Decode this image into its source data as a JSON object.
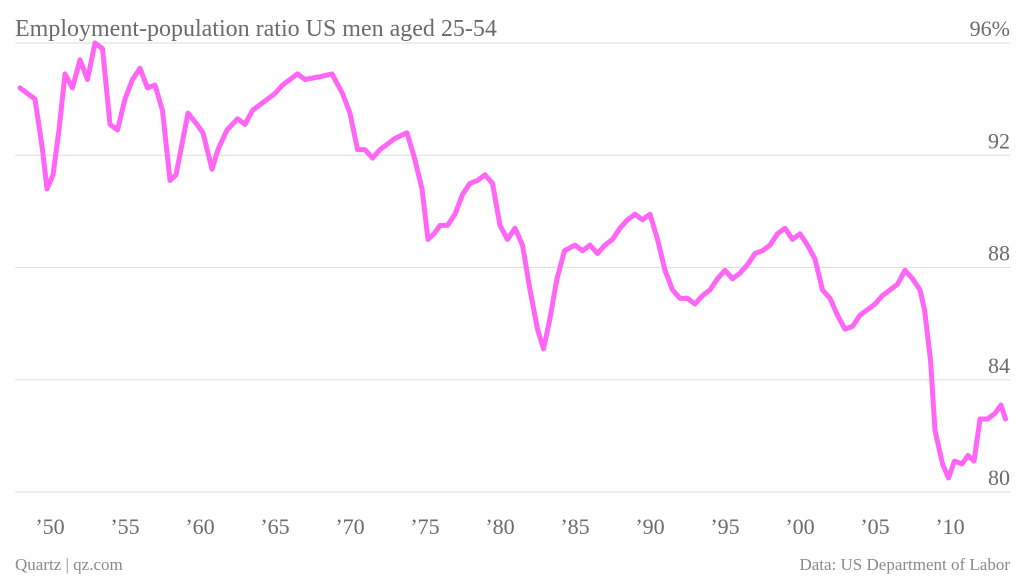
{
  "chart_data": {
    "type": "line",
    "title": "Employment-population ratio US men aged 25-54",
    "source": "Data: US Department of Labor",
    "credit": "Quartz | qz.com",
    "color": "#ff66f5",
    "grid": true,
    "xlim": [
      1947,
      2014
    ],
    "xticks": [
      {
        "value": 1950,
        "label": "’50"
      },
      {
        "value": 1955,
        "label": "’55"
      },
      {
        "value": 1960,
        "label": "’60"
      },
      {
        "value": 1965,
        "label": "’65"
      },
      {
        "value": 1970,
        "label": "’70"
      },
      {
        "value": 1975,
        "label": "’75"
      },
      {
        "value": 1980,
        "label": "’80"
      },
      {
        "value": 1985,
        "label": "’85"
      },
      {
        "value": 1990,
        "label": "’90"
      },
      {
        "value": 1995,
        "label": "’95"
      },
      {
        "value": 2000,
        "label": "’00"
      },
      {
        "value": 2005,
        "label": "’05"
      },
      {
        "value": 2010,
        "label": "’10"
      }
    ],
    "ylim": [
      80,
      96
    ],
    "yticks": [
      80,
      84,
      88,
      92,
      {
        "value": 96,
        "label": "96%"
      }
    ],
    "x": [
      1948.0,
      1948.5,
      1949.0,
      1949.5,
      1949.8,
      1950.2,
      1950.6,
      1951.0,
      1951.5,
      1952.0,
      1952.5,
      1953.0,
      1953.5,
      1954.0,
      1954.5,
      1955.0,
      1955.5,
      1956.0,
      1956.5,
      1957.0,
      1957.5,
      1958.0,
      1958.4,
      1958.8,
      1959.2,
      1959.8,
      1960.2,
      1960.8,
      1961.2,
      1961.8,
      1962.5,
      1963.0,
      1963.5,
      1964.0,
      1964.5,
      1965.0,
      1965.5,
      1966.0,
      1966.5,
      1967.0,
      1968.0,
      1968.8,
      1969.5,
      1970.0,
      1970.5,
      1971.0,
      1971.5,
      1972.0,
      1972.5,
      1973.0,
      1973.8,
      1974.3,
      1974.8,
      1975.2,
      1975.6,
      1976.0,
      1976.5,
      1977.0,
      1977.5,
      1978.0,
      1978.5,
      1979.0,
      1979.5,
      1980.0,
      1980.5,
      1981.0,
      1981.5,
      1982.0,
      1982.5,
      1982.9,
      1983.3,
      1983.8,
      1984.3,
      1985.0,
      1985.5,
      1986.0,
      1986.5,
      1987.0,
      1987.5,
      1988.0,
      1988.5,
      1989.0,
      1989.5,
      1990.0,
      1990.5,
      1991.0,
      1991.5,
      1992.0,
      1992.5,
      1993.0,
      1993.5,
      1994.0,
      1994.5,
      1995.0,
      1995.5,
      1996.0,
      1996.5,
      1997.0,
      1997.5,
      1998.0,
      1998.5,
      1999.0,
      1999.5,
      2000.0,
      2000.5,
      2001.0,
      2001.5,
      2002.0,
      2002.5,
      2003.0,
      2003.5,
      2004.0,
      2004.5,
      2005.0,
      2005.5,
      2006.0,
      2006.5,
      2007.0,
      2007.5,
      2008.0,
      2008.3,
      2008.7,
      2009.0,
      2009.5,
      2009.9,
      2010.3,
      2010.8,
      2011.2,
      2011.6,
      2012.0,
      2012.5,
      2013.0,
      2013.4,
      2013.7
    ],
    "values": [
      94.4,
      94.2,
      94.0,
      92.2,
      90.8,
      91.3,
      92.9,
      94.9,
      94.4,
      95.4,
      94.7,
      96.0,
      95.8,
      93.1,
      92.9,
      94.0,
      94.7,
      95.1,
      94.4,
      94.5,
      93.6,
      91.1,
      91.3,
      92.4,
      93.5,
      93.1,
      92.8,
      91.5,
      92.2,
      92.9,
      93.3,
      93.1,
      93.6,
      93.8,
      94.0,
      94.2,
      94.5,
      94.7,
      94.9,
      94.7,
      94.8,
      94.9,
      94.2,
      93.5,
      92.2,
      92.2,
      91.9,
      92.2,
      92.4,
      92.6,
      92.8,
      91.9,
      90.8,
      89.0,
      89.2,
      89.5,
      89.5,
      89.9,
      90.6,
      91.0,
      91.1,
      91.3,
      91.0,
      89.5,
      89.0,
      89.4,
      88.8,
      87.2,
      85.8,
      85.1,
      86.1,
      87.6,
      88.6,
      88.8,
      88.6,
      88.8,
      88.5,
      88.8,
      89.0,
      89.4,
      89.7,
      89.9,
      89.7,
      89.9,
      89.0,
      87.9,
      87.2,
      86.9,
      86.9,
      86.7,
      87.0,
      87.2,
      87.6,
      87.9,
      87.6,
      87.8,
      88.1,
      88.5,
      88.6,
      88.8,
      89.2,
      89.4,
      89.0,
      89.2,
      88.8,
      88.3,
      87.2,
      86.9,
      86.3,
      85.8,
      85.9,
      86.3,
      86.5,
      86.7,
      87.0,
      87.2,
      87.4,
      87.9,
      87.6,
      87.2,
      86.5,
      84.7,
      82.2,
      81.0,
      80.5,
      81.1,
      81.0,
      81.3,
      81.1,
      82.6,
      82.6,
      82.8,
      83.1,
      82.6
    ]
  }
}
